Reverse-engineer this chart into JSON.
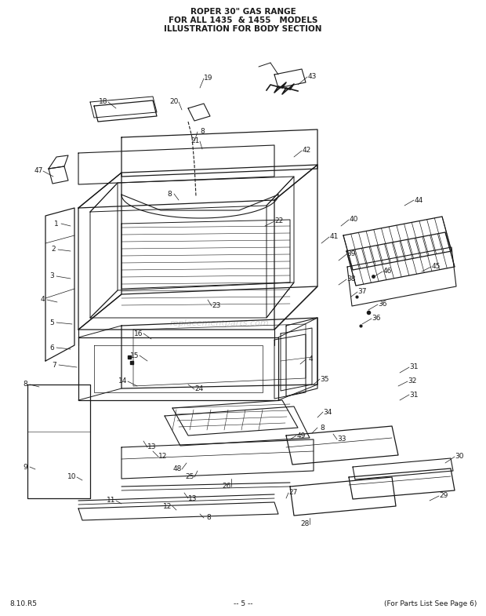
{
  "title_line1": "ROPER 30\" GAS RANGE",
  "title_line2": "FOR ALL 1435  & 1455   MODELS",
  "title_line3": "ILLUSTRATION FOR BODY SECTION",
  "footer_left": "8.10.R5",
  "footer_center": "-- 5 --",
  "footer_right": "(For Parts List See Page 6)",
  "bg_color": "#ffffff",
  "line_color": "#1a1a1a",
  "text_color": "#1a1a1a",
  "watermark": "replacementparts.com",
  "fig_width": 6.2,
  "fig_height": 7.85,
  "dpi": 100
}
